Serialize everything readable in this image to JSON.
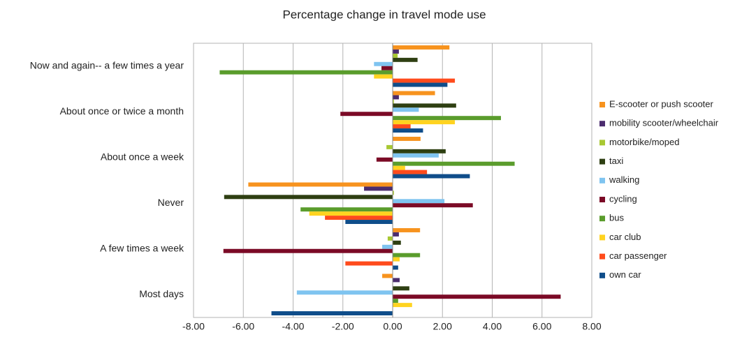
{
  "chart_data": {
    "type": "hbar",
    "title": "Percentage  change  in travel mode use",
    "categories": [
      "Now and again-- a few times a year",
      "About once or twice a month",
      "About once a week",
      "Never",
      "A few times a week",
      "Most days"
    ],
    "series": [
      {
        "name": "E-scooter or push scooter",
        "color": "#f7931e",
        "values": [
          2.28,
          1.7,
          1.12,
          -5.8,
          1.1,
          -0.42
        ]
      },
      {
        "name": "mobility scooter/wheelchair",
        "color": "#4b2c6e",
        "values": [
          0.25,
          0.25,
          0,
          -1.15,
          0.25,
          0.28
        ]
      },
      {
        "name": "motorbike/moped",
        "color": "#a8c832",
        "values": [
          0.2,
          0.05,
          -0.25,
          0.05,
          -0.2,
          0
        ]
      },
      {
        "name": "taxi",
        "color": "#2e3f12",
        "values": [
          1.0,
          2.55,
          2.13,
          -6.77,
          0.33,
          0.67
        ]
      },
      {
        "name": "walking",
        "color": "#7fc4f0",
        "values": [
          -0.75,
          1.05,
          1.85,
          2.08,
          -0.42,
          -3.85
        ]
      },
      {
        "name": "cycling",
        "color": "#7b0a26",
        "values": [
          -0.45,
          -2.1,
          -0.65,
          3.22,
          -6.8,
          6.75
        ]
      },
      {
        "name": "bus",
        "color": "#5a9c2c",
        "values": [
          -6.95,
          4.35,
          4.9,
          -3.7,
          1.1,
          0.22
        ]
      },
      {
        "name": "car club",
        "color": "#ffd320",
        "values": [
          -0.75,
          2.5,
          0.5,
          -3.35,
          0.28,
          0.78
        ]
      },
      {
        "name": "car passenger",
        "color": "#ff4b1c",
        "values": [
          2.5,
          0.72,
          1.38,
          -2.72,
          -1.9,
          0
        ]
      },
      {
        "name": "own car",
        "color": "#0f4d8a",
        "values": [
          2.2,
          1.22,
          3.1,
          -1.9,
          0.22,
          -4.87
        ]
      }
    ],
    "xlim": [
      -8,
      8
    ],
    "xticks": [
      {
        "value": -8,
        "label": "-8.00"
      },
      {
        "value": -6,
        "label": "-6.00"
      },
      {
        "value": -4,
        "label": "-4.00"
      },
      {
        "value": -2,
        "label": "-2.00"
      },
      {
        "value": 0,
        "label": "0.00"
      },
      {
        "value": 2,
        "label": "2.00"
      },
      {
        "value": 4,
        "label": "4.00"
      },
      {
        "value": 6,
        "label": "6.00"
      },
      {
        "value": 8,
        "label": "8.00"
      }
    ],
    "grid": true
  }
}
